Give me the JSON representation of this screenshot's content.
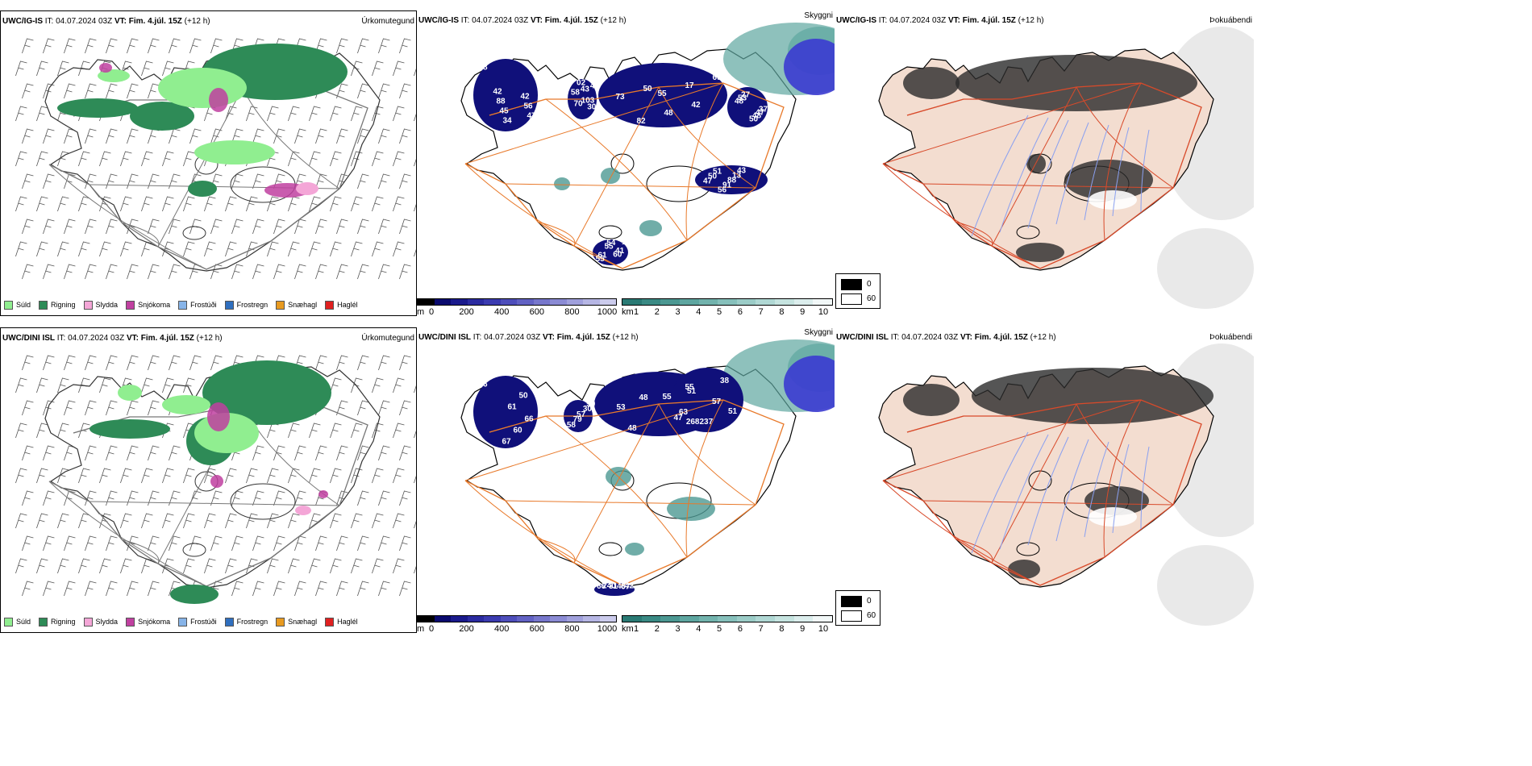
{
  "rows": [
    {
      "precip": {
        "model": "UWC/IG-IS",
        "it_label": "IT:",
        "it": "04.07.2024 03Z",
        "vt_label": "VT:",
        "vt": "Fim. 4.júl. 15Z",
        "lead": "(+12 h)",
        "variable": "Úrkomutegund"
      },
      "cloud": {
        "model": "UWC/IG-IS",
        "it_label": "IT:",
        "it": "04.07.2024 03Z",
        "vt_label": "VT:",
        "vt": "Fim. 4.júl. 15Z",
        "lead": "(+12 h)",
        "variable": "Skyggni",
        "labels": [
          "58",
          "50",
          "47",
          "61",
          "58",
          "50",
          "34",
          "73",
          "50",
          "54",
          "30",
          "48",
          "47",
          "42",
          "51",
          "41",
          "43",
          "48",
          "45",
          "48",
          "56",
          "55",
          "70",
          "53",
          "56",
          "82",
          "91",
          "55",
          "48",
          "47",
          "88",
          "69",
          "88",
          "60",
          "103",
          "27",
          "42",
          "17",
          "13",
          "10",
          "02",
          "37",
          "42",
          "55",
          "43"
        ]
      },
      "fog": {
        "model": "UWC/IG-IS",
        "it_label": "IT:",
        "it": "04.07.2024 03Z",
        "vt_label": "VT:",
        "vt": "Fim. 4.júl. 15Z",
        "lead": "(+12 h)",
        "variable": "Þokuábendi"
      }
    },
    {
      "precip": {
        "model": "UWC/DINI ISL",
        "it_label": "IT:",
        "it": "04.07.2024 03Z",
        "vt_label": "VT:",
        "vt": "Fim. 4.júl. 15Z",
        "lead": "(+12 h)",
        "variable": "Úrkomutegund"
      },
      "cloud": {
        "model": "UWC/DINI ISL",
        "it_label": "IT:",
        "it": "04.07.2024 03Z",
        "vt_label": "VT:",
        "vt": "Fim. 4.júl. 15Z",
        "lead": "(+12 h)",
        "variable": "Skyggni",
        "labels": [
          "56",
          "48",
          "63",
          "67",
          "58",
          "66",
          "55",
          "57",
          "31",
          "57",
          "50",
          "48",
          "51",
          "66",
          "50",
          "60",
          "47",
          "38",
          "48",
          "79",
          "61",
          "53",
          "268237",
          "240",
          "30",
          "67",
          "55",
          "51",
          "42"
        ]
      },
      "fog": {
        "model": "UWC/DINI ISL",
        "it_label": "IT:",
        "it": "04.07.2024 03Z",
        "vt_label": "VT:",
        "vt": "Fim. 4.júl. 15Z",
        "lead": "(+12 h)",
        "variable": "Þokuábendi"
      }
    }
  ],
  "precip_legend": [
    {
      "label": "Súld",
      "color": "#90ee90"
    },
    {
      "label": "Rigning",
      "color": "#2e8b57"
    },
    {
      "label": "Slydda",
      "color": "#f4a6d7"
    },
    {
      "label": "Snjókoma",
      "color": "#c040a0"
    },
    {
      "label": "Frostúði",
      "color": "#87b4e8"
    },
    {
      "label": "Frostregn",
      "color": "#2f6fbf"
    },
    {
      "label": "Snæhagl",
      "color": "#e89a20"
    },
    {
      "label": "Haglél",
      "color": "#e02020"
    }
  ],
  "height_bar": {
    "unit": "m",
    "ticks": [
      "0",
      "200",
      "400",
      "600",
      "800",
      "1000"
    ],
    "colors": [
      "#000000",
      "#0a0a6e",
      "#1a1a8c",
      "#2b2ba0",
      "#3b3bb0",
      "#4e4ebb",
      "#6262c4",
      "#7777cc",
      "#8b8bd4",
      "#a0a0dc",
      "#b6b6e4",
      "#cbcbec"
    ]
  },
  "vis_bar": {
    "unit": "km",
    "ticks": [
      "1",
      "2",
      "3",
      "4",
      "5",
      "6",
      "7",
      "8",
      "9",
      "10"
    ],
    "colors": [
      "#2a7a74",
      "#3a8a84",
      "#4c9892",
      "#5ea6a0",
      "#72b3ad",
      "#86c0bb",
      "#9bccc7",
      "#b0d8d4",
      "#c6e4e0",
      "#dceeed",
      "#f2f8f8"
    ]
  },
  "fog_legend": {
    "values": [
      "0",
      "60"
    ],
    "colors": [
      "#000000",
      "#ffffff"
    ]
  }
}
